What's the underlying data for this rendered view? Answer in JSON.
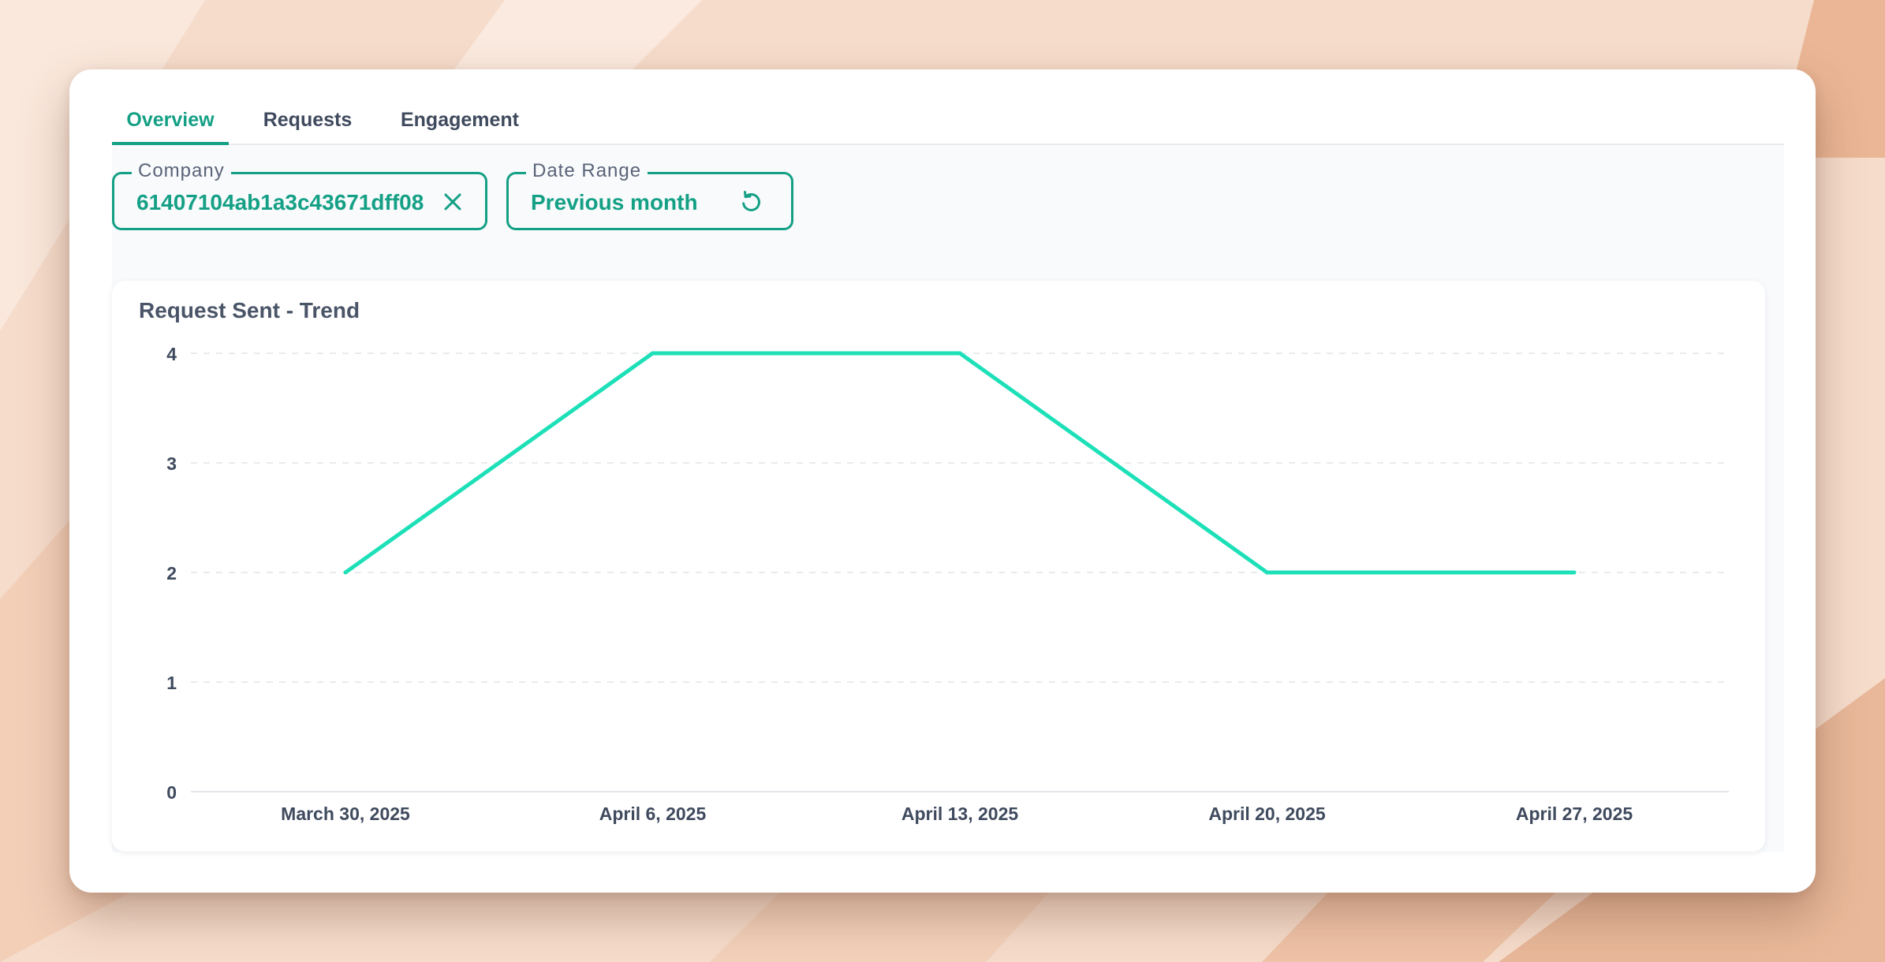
{
  "tabs": [
    {
      "label": "Overview",
      "active": true
    },
    {
      "label": "Requests",
      "active": false
    },
    {
      "label": "Engagement",
      "active": false
    }
  ],
  "filters": {
    "company": {
      "label": "Company",
      "value": "61407104ab1a3c43671dff08",
      "icon": "close-icon"
    },
    "date_range": {
      "label": "Date Range",
      "value": "Previous month",
      "icon": "reset-icon"
    }
  },
  "colors": {
    "accent": "#14a085",
    "line": "#1de0b8",
    "text": "#3f4a5e"
  },
  "chart_data": {
    "type": "line",
    "title": "Request Sent - Trend",
    "categories": [
      "March 30, 2025",
      "April 6, 2025",
      "April 13, 2025",
      "April 20, 2025",
      "April 27, 2025"
    ],
    "series": [
      {
        "name": "Request Sent",
        "values": [
          2,
          4,
          4,
          2,
          2
        ]
      }
    ],
    "yticks": [
      0,
      1,
      2,
      3,
      4
    ],
    "ylim": [
      0,
      4
    ],
    "grid": true,
    "xlabel": "",
    "ylabel": ""
  }
}
